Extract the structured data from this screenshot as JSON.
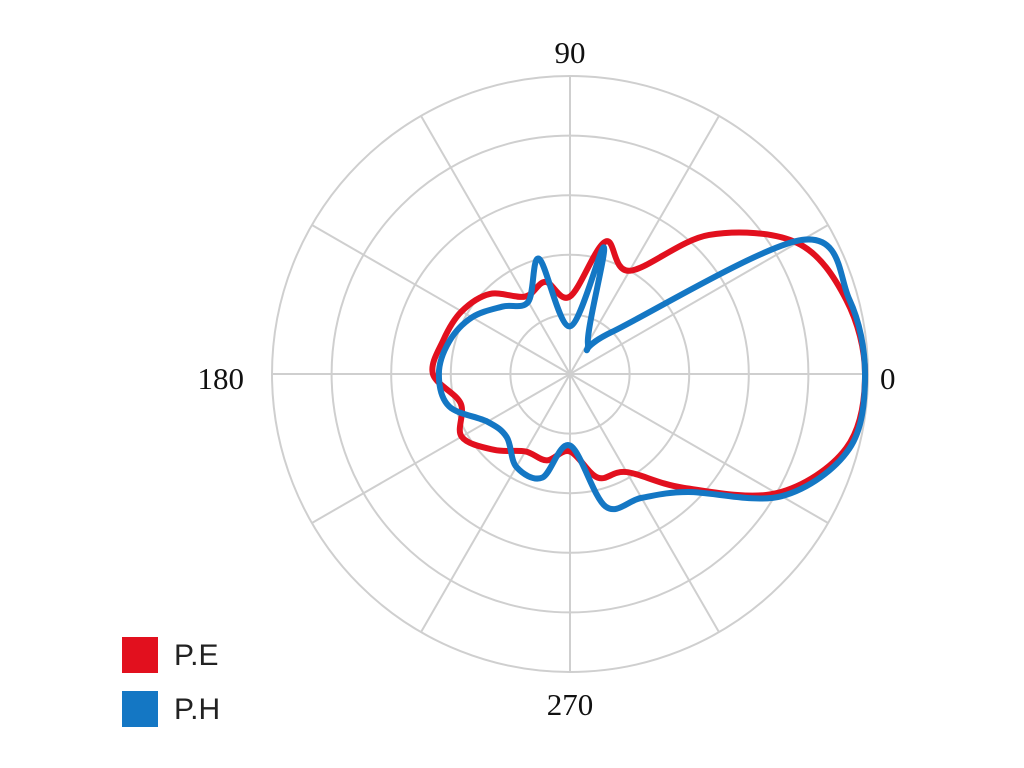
{
  "chart_data": {
    "type": "polar",
    "theta": [
      0,
      15,
      30,
      45,
      60,
      75,
      90,
      105,
      120,
      135,
      150,
      165,
      180,
      195,
      210,
      225,
      240,
      255,
      270,
      285,
      300,
      315,
      330,
      345
    ],
    "series": [
      {
        "name": "P.E",
        "color": "#e2101e",
        "values": [
          4.95,
          4.8,
          4.4,
          3.3,
          2.0,
          2.3,
          1.3,
          1.6,
          1.5,
          1.9,
          2.1,
          2.2,
          2.3,
          1.9,
          2.1,
          1.8,
          1.5,
          1.5,
          1.3,
          1.8,
          1.9,
          2.7,
          4.0,
          4.8
        ]
      },
      {
        "name": "P.H",
        "color": "#1477c4",
        "values": [
          4.95,
          4.85,
          4.5,
          1.0,
          0.6,
          2.2,
          0.8,
          2.0,
          1.4,
          1.6,
          1.9,
          2.1,
          2.2,
          2.1,
          1.6,
          1.5,
          1.8,
          1.8,
          1.2,
          2.3,
          2.4,
          2.8,
          4.1,
          4.85
        ]
      }
    ],
    "rlim": [
      0,
      5
    ],
    "rticks": [
      1,
      2,
      3,
      4,
      5
    ],
    "thetaticks": [
      0,
      90,
      180,
      270
    ],
    "thetagrid": [
      0,
      30,
      60,
      90,
      120,
      150,
      180,
      210,
      240,
      270,
      300,
      330
    ],
    "grid": true,
    "legend": "lower left"
  }
}
